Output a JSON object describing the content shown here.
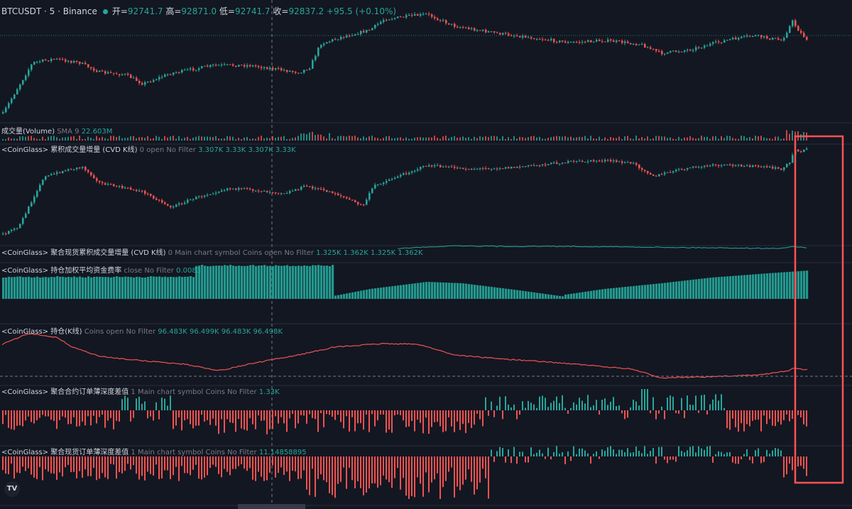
{
  "header": {
    "symbol": "BTCUSDT · 5 · Binance",
    "open_label": "开=",
    "open": "92741.7",
    "high_label": "高=",
    "high": "92871.0",
    "low_label": "低=",
    "low": "92741.7",
    "close_label": "收=",
    "close": "92837.2",
    "change": "+95.5 (+0.10%)"
  },
  "panes": {
    "volume": {
      "name": "成交量(Volume)",
      "params": "SMA 9",
      "value": "22.603M"
    },
    "cvd": {
      "name": "<CoinGlass> 累积成交量增量 (CVD K线)",
      "params": "0 open No Filter",
      "v1": "3.307K",
      "v2": "3.33K",
      "v3": "3.307K",
      "v4": "3.33K"
    },
    "spot_cvd": {
      "name": "<CoinGlass> 聚合现货累积成交量增量 (CVD K线)",
      "params": "0 Main chart symbol Coins open No Filter",
      "v1": "1.325K",
      "v2": "1.362K",
      "v3": "1.325K",
      "v4": "1.362K"
    },
    "funding": {
      "name": "<CoinGlass> 持仓加权平均资金费率",
      "params": "close No Filter",
      "value": "0.0083"
    },
    "oi": {
      "name": "<CoinGlass> 持仓(K线)",
      "params": "Coins open No Filter",
      "v1": "96.483K",
      "v2": "96.499K",
      "v3": "96.483K",
      "v4": "96.498K"
    },
    "fut_depth": {
      "name": "<CoinGlass> 聚合合约订单薄深度差值",
      "params": "1 Main chart symbol Coins No Filter",
      "value": "1.33K"
    },
    "spot_depth": {
      "name": "<CoinGlass> 聚合现货订单薄深度差值",
      "params": "1 Main chart symbol Coins No Filter",
      "value": "11.14858895"
    }
  },
  "logo_text": "TV",
  "colors": {
    "up": "#26a69a",
    "down": "#ef5350",
    "highlight": "#ff5252",
    "background": "#131722"
  }
}
